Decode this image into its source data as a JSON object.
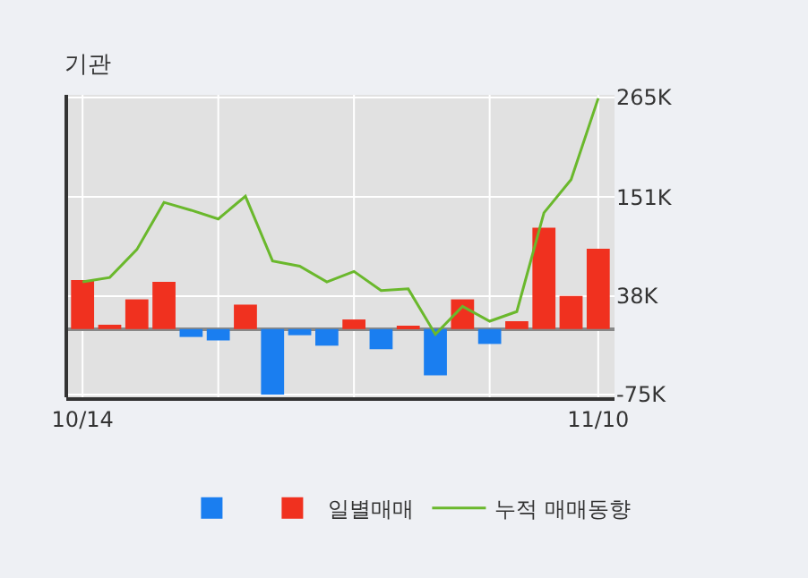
{
  "chart_data": {
    "type": "bar",
    "title": "기관",
    "categories": [
      "10/14",
      null,
      null,
      null,
      null,
      null,
      null,
      null,
      null,
      null,
      null,
      null,
      null,
      null,
      null,
      null,
      null,
      null,
      null,
      "11/10"
    ],
    "series": [
      {
        "name": "일별매매",
        "colors": [
          "#f0311f",
          "#f0311f",
          "#f0311f",
          "#f0311f",
          "#1a7ef0",
          "#1a7ef0",
          "#f0311f",
          "#1a7ef0",
          "#1a7ef0",
          "#1a7ef0",
          "#f0311f",
          "#1a7ef0",
          "#f0311f",
          "#1a7ef0",
          "#f0311f",
          "#1a7ef0",
          "#f0311f",
          "#f0311f",
          "#f0311f",
          "#f0311f"
        ],
        "values": [
          56,
          5,
          34,
          54,
          -9,
          -13,
          28,
          -75,
          -7,
          -19,
          11,
          -23,
          3,
          -53,
          34,
          -17,
          9,
          116,
          38,
          92
        ]
      },
      {
        "name": "누적 매매동향",
        "type": "line",
        "color": "#6ab82c",
        "values": [
          54,
          59,
          91,
          145,
          136,
          126,
          152,
          78,
          72,
          54,
          66,
          44,
          46,
          -6,
          26,
          9,
          20,
          133,
          171,
          264
        ]
      }
    ],
    "ylim": [
      -78,
      268
    ],
    "yticks": [
      {
        "value": -75,
        "label": "-75K"
      },
      {
        "value": 38,
        "label": "38K"
      },
      {
        "value": 151,
        "label": "151K"
      },
      {
        "value": 265,
        "label": "265K"
      }
    ],
    "grid": true,
    "legend": "bottom",
    "marker": "none",
    "line_style": "solid"
  }
}
